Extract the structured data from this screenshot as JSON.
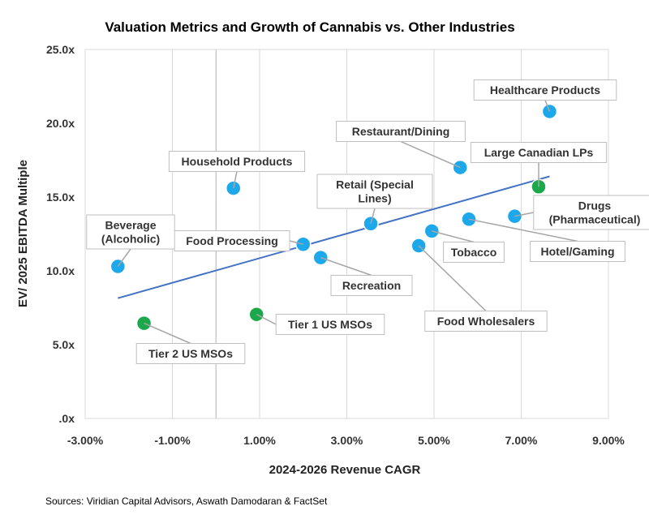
{
  "chart_data": {
    "type": "scatter",
    "title": "Valuation Metrics and Growth of Cannabis vs. Other Industries",
    "xlabel": "2024-2026 Revenue CAGR",
    "ylabel": "EV/ 2025 EBITDA Multiple",
    "source": "Sources:  Viridian Capital Advisors, Aswath Damodaran & FactSet",
    "xlim": [
      -0.03,
      0.09
    ],
    "ylim": [
      0,
      25
    ],
    "x_ticks": [
      "-3.00%",
      "-1.00%",
      "1.00%",
      "3.00%",
      "5.00%",
      "7.00%",
      "9.00%"
    ],
    "y_ticks": [
      ".0x",
      "5.0x",
      "10.0x",
      "15.0x",
      "20.0x",
      "25.0x"
    ],
    "grid": "vertical",
    "colors": {
      "industry": "#1ea8ec",
      "cannabis": "#1aa84a",
      "trendline": "#4472c4"
    },
    "trendline": {
      "x": [
        -0.0225,
        0.0765
      ],
      "y": [
        8.15,
        16.4
      ]
    },
    "points": [
      {
        "label": "Healthcare Products",
        "x": 0.0765,
        "y": 20.8,
        "group": "industry"
      },
      {
        "label": "Restaurant/Dining",
        "x": 0.056,
        "y": 17.0,
        "group": "industry"
      },
      {
        "label": "Large Canadian LPs",
        "x": 0.074,
        "y": 15.7,
        "group": "cannabis"
      },
      {
        "label": "Household Products",
        "x": 0.004,
        "y": 15.6,
        "group": "industry"
      },
      {
        "label": "Drugs (Pharmaceutical)",
        "x": 0.0685,
        "y": 13.7,
        "group": "industry"
      },
      {
        "label": "Hotel/Gaming",
        "x": 0.058,
        "y": 13.5,
        "group": "industry"
      },
      {
        "label": "Retail (Special Lines)",
        "x": 0.0355,
        "y": 13.2,
        "group": "industry"
      },
      {
        "label": "Tobacco",
        "x": 0.0495,
        "y": 12.7,
        "group": "industry"
      },
      {
        "label": "Food Processing",
        "x": 0.02,
        "y": 11.8,
        "group": "industry"
      },
      {
        "label": "Food Wholesalers",
        "x": 0.0465,
        "y": 11.7,
        "group": "industry"
      },
      {
        "label": "Recreation",
        "x": 0.024,
        "y": 10.9,
        "group": "industry"
      },
      {
        "label": "Beverage (Alcoholic)",
        "x": -0.0225,
        "y": 10.3,
        "group": "industry"
      },
      {
        "label": "Tier 1 US MSOs",
        "x": 0.0093,
        "y": 7.05,
        "group": "cannabis"
      },
      {
        "label": "Tier 2 US MSOs",
        "x": -0.0165,
        "y": 6.45,
        "group": "cannabis"
      }
    ]
  }
}
